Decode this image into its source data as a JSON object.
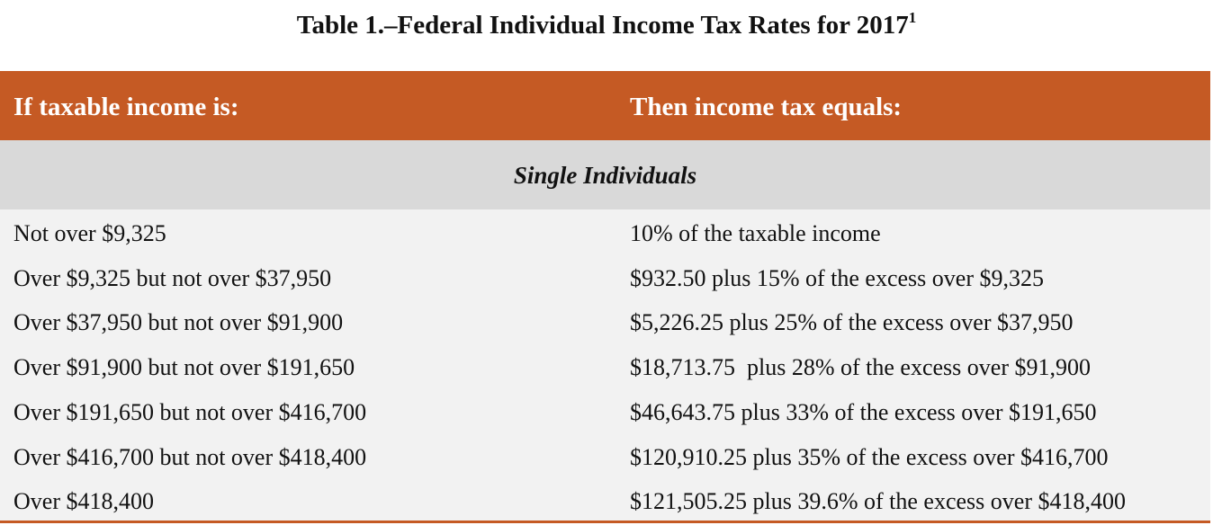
{
  "header": {
    "title": "Table 1.–Federal Individual Income Tax Rates for 2017",
    "title_note": "1"
  },
  "table": {
    "columns": [
      "If taxable income is:",
      "Then income tax equals:"
    ],
    "section": "Single Individuals",
    "rows": [
      [
        "Not over $9,325",
        "10% of the taxable income"
      ],
      [
        "Over $9,325 but not over $37,950",
        "$932.50 plus 15% of the excess over $9,325"
      ],
      [
        "Over $37,950 but not over $91,900",
        "$5,226.25 plus 25% of the excess over $37,950"
      ],
      [
        "Over $91,900 but not over $191,650",
        "$18,713.75  plus 28% of the excess over $91,900"
      ],
      [
        "Over $191,650 but not over $416,700",
        "$46,643.75 plus 33% of the excess over $191,650"
      ],
      [
        "Over $416,700 but not over $418,400",
        "$120,910.25 plus 35% of the excess over $416,700"
      ],
      [
        "Over $418,400",
        "$121,505.25 plus 39.6% of the excess over $418,400"
      ]
    ]
  }
}
